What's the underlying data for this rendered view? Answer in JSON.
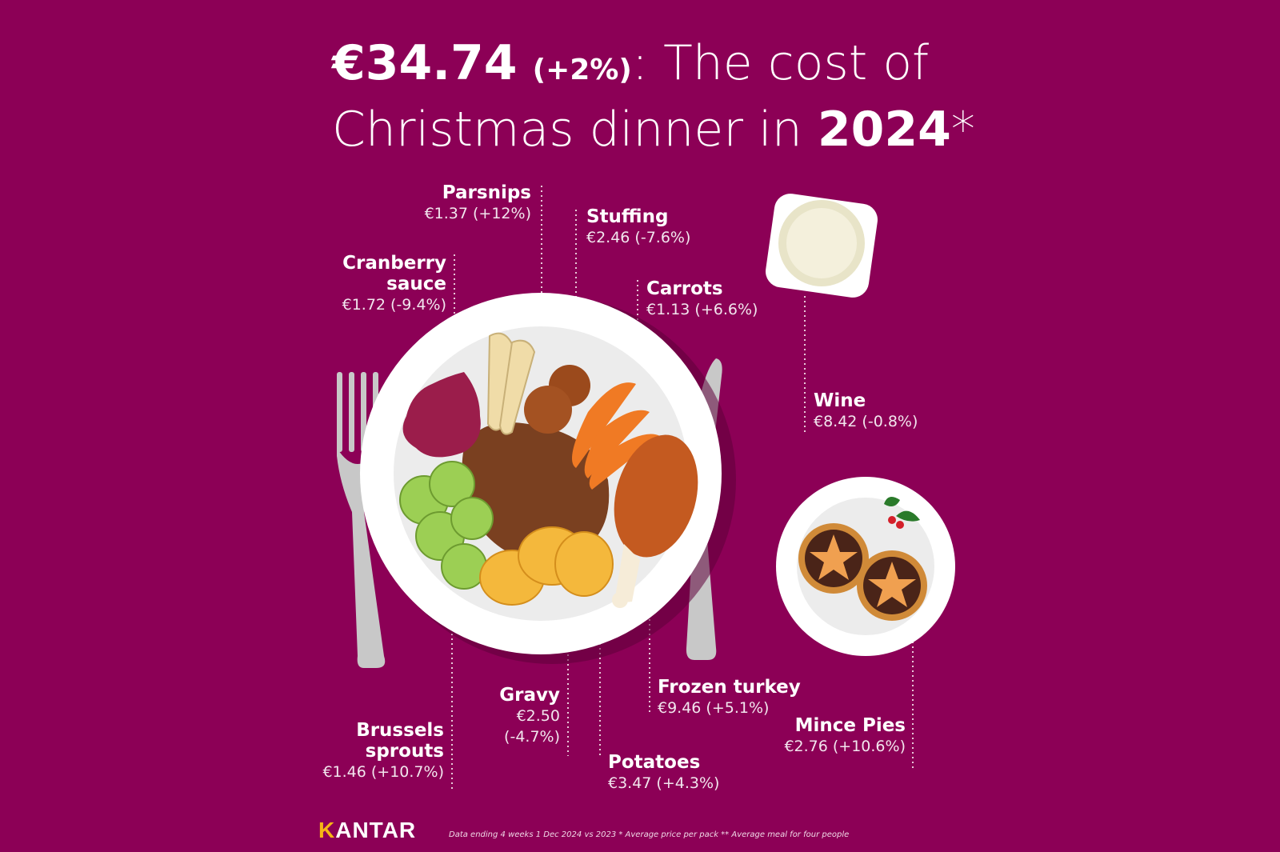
{
  "title": {
    "amount": "€34.74",
    "change": "(+2%)",
    "line1_rest": ": The cost of",
    "line2_start": "Christmas dinner in ",
    "year": "2024",
    "asterisk": "*"
  },
  "items": {
    "parsnips": {
      "name": "Parsnips",
      "value": "€1.37 (+12%)"
    },
    "stuffing": {
      "name": "Stuffing",
      "value": "€2.46 (-7.6%)"
    },
    "cranberry": {
      "name1": "Cranberry",
      "name2": "sauce",
      "value": "€1.72 (-9.4%)"
    },
    "carrots": {
      "name": "Carrots",
      "value": "€1.13 (+6.6%)"
    },
    "wine": {
      "name": "Wine",
      "value": "€8.42 (-0.8%)"
    },
    "frozen_turkey": {
      "name": "Frozen turkey",
      "value": "€9.46 (+5.1%)"
    },
    "mince_pies": {
      "name": "Mince Pies",
      "value": "€2.76 (+10.6%)"
    },
    "gravy": {
      "name": "Gravy",
      "value1": "€2.50",
      "value2": "(-4.7%)"
    },
    "brussels": {
      "name1": "Brussels",
      "name2": "sprouts",
      "value": "€1.46 (+10.7%)"
    },
    "potatoes": {
      "name": "Potatoes",
      "value": "€3.47 (+4.3%)"
    }
  },
  "brand": {
    "logo_k": "K",
    "logo_rest": "ANTAR"
  },
  "footnote": "Data ending 4 weeks 1 Dec 2024 vs 2023  * Average price per pack  ** Average meal for four people",
  "colors": {
    "background": "#8c0056",
    "accent": "#f6b515"
  }
}
